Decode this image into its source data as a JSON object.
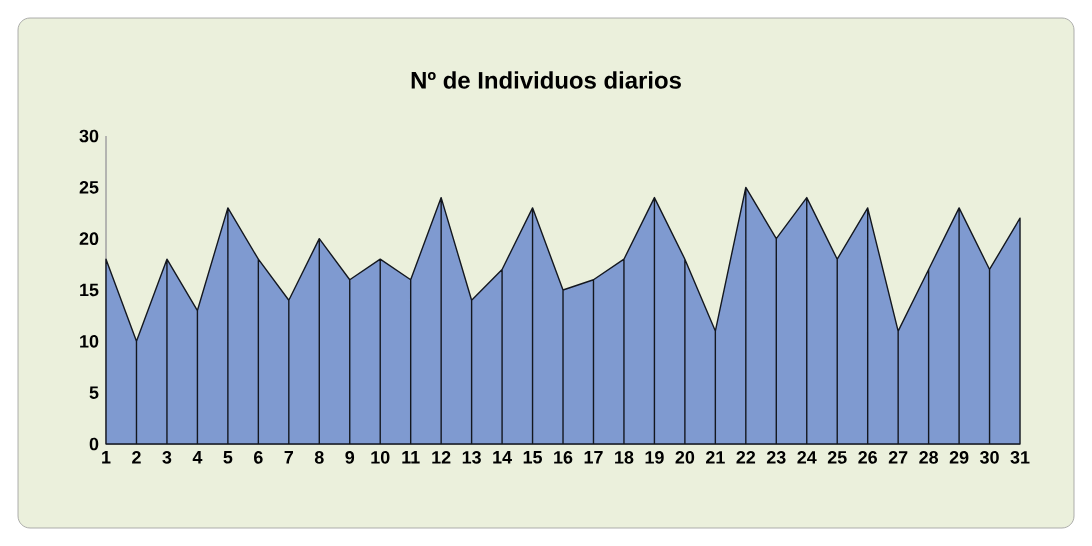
{
  "chart_data": {
    "type": "area",
    "title": "Nº de Individuos diarios",
    "categories": [
      "1",
      "2",
      "3",
      "4",
      "5",
      "6",
      "7",
      "8",
      "9",
      "10",
      "11",
      "12",
      "13",
      "14",
      "15",
      "16",
      "17",
      "18",
      "19",
      "20",
      "21",
      "22",
      "23",
      "24",
      "25",
      "26",
      "27",
      "28",
      "29",
      "30",
      "31"
    ],
    "values": [
      18,
      10,
      18,
      13,
      23,
      18,
      14,
      20,
      16,
      18,
      16,
      24,
      14,
      17,
      23,
      15,
      16,
      18,
      24,
      18,
      11,
      25,
      20,
      24,
      18,
      23,
      11,
      17,
      23,
      17,
      22
    ],
    "color": "#7f9ad0",
    "ylim": [
      0,
      30
    ],
    "yticks": [
      0,
      5,
      10,
      15,
      20,
      25,
      30
    ],
    "grid": false
  }
}
